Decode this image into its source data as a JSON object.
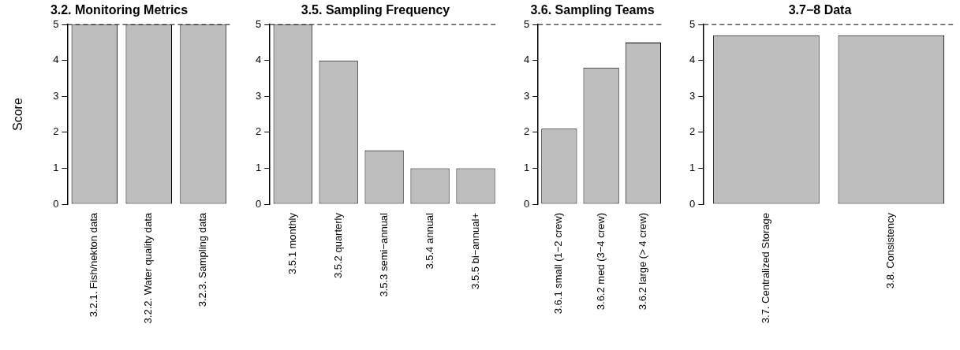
{
  "chart_data": [
    {
      "type": "bar",
      "title": "3.2. Monitoring Metrics",
      "ylabel": "Score",
      "categories": [
        "3.2.1. Fish/nekton data",
        "3.2.2. Water quality data",
        "3.2.3. Sampling data"
      ],
      "values": [
        5,
        5,
        5
      ],
      "color": "#bebebe",
      "ylim": [
        0,
        5
      ],
      "yticks": [
        0,
        1,
        2,
        3,
        4,
        5
      ],
      "grid": false,
      "legend": false,
      "ref_lines": [
        {
          "axis": "y",
          "value": 5,
          "line_style": "dashed",
          "color": "#000000"
        }
      ]
    },
    {
      "type": "bar",
      "title": "3.5. Sampling Frequency",
      "categories": [
        "3.5.1 monthly",
        "3.5.2 quarterly",
        "3.5.3 semi−annual",
        "3.5.4 annual",
        "3.5.5 bi−annual+"
      ],
      "values": [
        5,
        4,
        1.5,
        1,
        1
      ],
      "color": "#bebebe",
      "ylim": [
        0,
        5
      ],
      "yticks": [
        0,
        1,
        2,
        3,
        4,
        5
      ],
      "grid": false,
      "legend": false,
      "ref_lines": [
        {
          "axis": "y",
          "value": 5,
          "line_style": "dashed",
          "color": "#000000"
        }
      ]
    },
    {
      "type": "bar",
      "title": "3.6. Sampling Teams",
      "categories": [
        "3.6.1 small (1−2 crew)",
        "3.6.2 med (3−4 crew)",
        "3.6.2 large (> 4 crew)"
      ],
      "values": [
        2.1,
        3.8,
        4.5
      ],
      "color": "#bebebe",
      "ylim": [
        0,
        5
      ],
      "yticks": [
        0,
        1,
        2,
        3,
        4,
        5
      ],
      "grid": false,
      "legend": false,
      "ref_lines": [
        {
          "axis": "y",
          "value": 5,
          "line_style": "dashed",
          "color": "#000000"
        }
      ]
    },
    {
      "type": "bar",
      "title": "3.7−8 Data",
      "categories": [
        "3.7. Centralized Storage",
        "3.8. Consistency"
      ],
      "values": [
        4.7,
        4.7
      ],
      "color": "#bebebe",
      "ylim": [
        0,
        5
      ],
      "yticks": [
        0,
        1,
        2,
        3,
        4,
        5
      ],
      "grid": false,
      "legend": false,
      "ref_lines": [
        {
          "axis": "y",
          "value": 5,
          "line_style": "dashed",
          "color": "#000000"
        }
      ]
    }
  ]
}
